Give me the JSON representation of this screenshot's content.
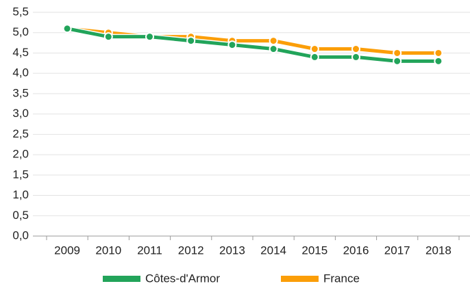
{
  "chart_data": {
    "type": "line",
    "categories": [
      "2009",
      "2010",
      "2011",
      "2012",
      "2013",
      "2014",
      "2015",
      "2016",
      "2017",
      "2018"
    ],
    "series": [
      {
        "name": "Côtes-d'Armor",
        "color": "#22a45a",
        "values": [
          5.1,
          4.9,
          4.9,
          4.8,
          4.7,
          4.6,
          4.4,
          4.4,
          4.3,
          4.3
        ]
      },
      {
        "name": "France",
        "color": "#fb9e08",
        "values": [
          5.1,
          5.0,
          4.9,
          4.9,
          4.8,
          4.8,
          4.6,
          4.6,
          4.5,
          4.5
        ]
      }
    ],
    "ylim": [
      0,
      5.5
    ],
    "yticks": [
      {
        "value": 0,
        "label": "0,0"
      },
      {
        "value": 0.5,
        "label": "0,5"
      },
      {
        "value": 1,
        "label": "1,0"
      },
      {
        "value": 1.5,
        "label": "1,5"
      },
      {
        "value": 2,
        "label": "2,0"
      },
      {
        "value": 2.5,
        "label": "2,5"
      },
      {
        "value": 3,
        "label": "3,0"
      },
      {
        "value": 3.5,
        "label": "3,5"
      },
      {
        "value": 4,
        "label": "4,0"
      },
      {
        "value": 4.5,
        "label": "4,5"
      },
      {
        "value": 5,
        "label": "5,0"
      },
      {
        "value": 5.5,
        "label": "5,5"
      }
    ],
    "grid": true,
    "legend": "bottom"
  }
}
